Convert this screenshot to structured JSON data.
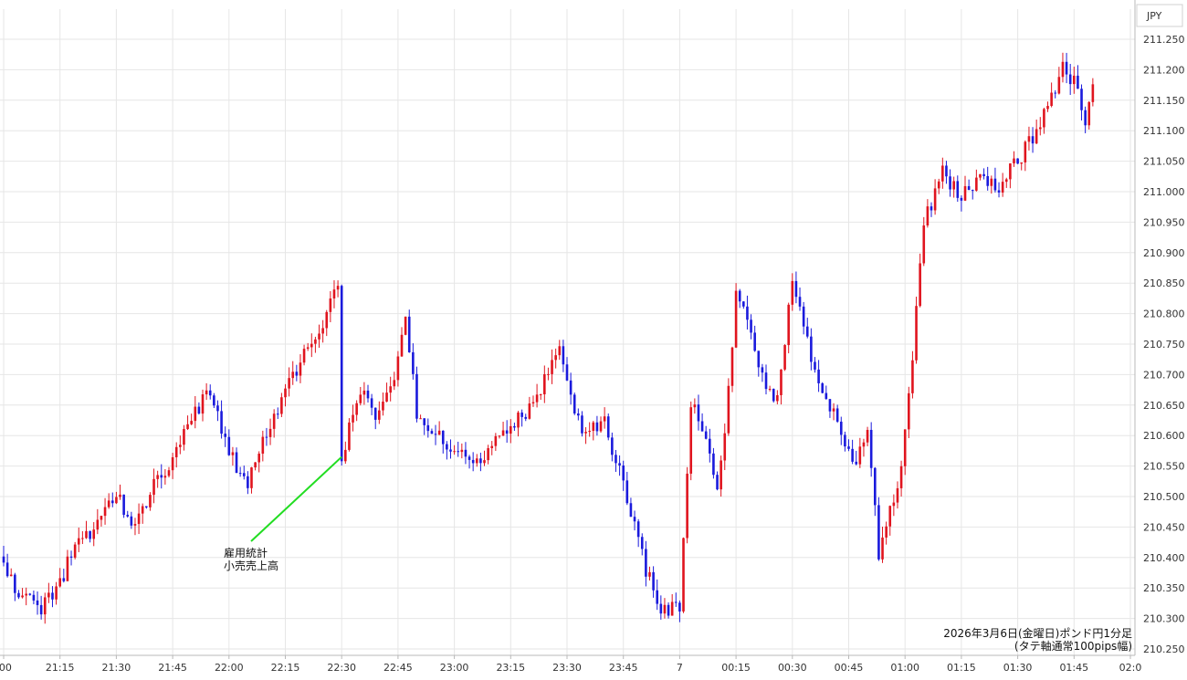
{
  "chart_data": {
    "type": "candlestick",
    "currency_label": "JPY",
    "info_line1": "2026年3月6日(金曜日)ポンド円1分足",
    "info_line2": "(タテ軸通常100pips幅)",
    "annotation": {
      "line1": "雇用統計",
      "line2": "小売売上高"
    },
    "ylim": [
      210.25,
      211.25
    ],
    "yticks": [
      "211.250",
      "211.200",
      "211.150",
      "211.100",
      "211.050",
      "211.000",
      "210.950",
      "210.900",
      "210.850",
      "210.800",
      "210.750",
      "210.700",
      "210.650",
      "210.600",
      "210.550",
      "210.500",
      "210.450",
      "210.400",
      "210.350",
      "210.300",
      "210.250"
    ],
    "xticks": [
      ":00",
      "21:15",
      "21:30",
      "21:45",
      "22:00",
      "22:15",
      "22:30",
      "22:45",
      "23:00",
      "23:15",
      "23:30",
      "23:45",
      "7",
      "00:15",
      "00:30",
      "00:45",
      "01:00",
      "01:15",
      "01:30",
      "01:45",
      "02:0"
    ],
    "grid": true,
    "colors": {
      "up": "#e0141e",
      "down": "#1a1adc",
      "annotation_line": "#22dd22",
      "grid": "#e6e6e6"
    },
    "event_time": "22:30",
    "event_price": 210.565,
    "candles_start": "21:00",
    "candles_interval_min": 1,
    "key_points": [
      [
        "21:00",
        210.39
      ],
      [
        "21:05",
        210.33
      ],
      [
        "21:10",
        210.32
      ],
      [
        "21:15",
        210.36
      ],
      [
        "21:20",
        210.43
      ],
      [
        "21:25",
        210.45
      ],
      [
        "21:30",
        210.5
      ],
      [
        "21:35",
        210.45
      ],
      [
        "21:40",
        210.52
      ],
      [
        "21:45",
        210.56
      ],
      [
        "21:50",
        210.63
      ],
      [
        "21:55",
        210.67
      ],
      [
        "22:00",
        210.57
      ],
      [
        "22:05",
        210.52
      ],
      [
        "22:10",
        210.6
      ],
      [
        "22:15",
        210.68
      ],
      [
        "22:20",
        210.73
      ],
      [
        "22:25",
        210.79
      ],
      [
        "22:28",
        210.84
      ],
      [
        "22:29",
        210.85
      ],
      [
        "22:30",
        210.57
      ],
      [
        "22:35",
        210.67
      ],
      [
        "22:40",
        210.63
      ],
      [
        "22:45",
        210.72
      ],
      [
        "22:47",
        210.79
      ],
      [
        "22:50",
        210.64
      ],
      [
        "22:55",
        210.6
      ],
      [
        "23:00",
        210.57
      ],
      [
        "23:05",
        210.56
      ],
      [
        "23:10",
        210.58
      ],
      [
        "23:15",
        210.62
      ],
      [
        "23:20",
        210.64
      ],
      [
        "23:25",
        210.7
      ],
      [
        "23:28",
        210.76
      ],
      [
        "23:30",
        210.68
      ],
      [
        "23:35",
        210.6
      ],
      [
        "23:40",
        210.62
      ],
      [
        "23:45",
        210.52
      ],
      [
        "23:50",
        210.4
      ],
      [
        "23:55",
        210.31
      ],
      [
        "24:00",
        210.32
      ],
      [
        "24:03",
        210.65
      ],
      [
        "24:07",
        210.6
      ],
      [
        "24:10",
        210.5
      ],
      [
        "24:13",
        210.67
      ],
      [
        "24:15",
        210.84
      ],
      [
        "24:18",
        210.8
      ],
      [
        "24:22",
        210.7
      ],
      [
        "24:26",
        210.66
      ],
      [
        "24:30",
        210.85
      ],
      [
        "24:34",
        210.75
      ],
      [
        "24:38",
        210.68
      ],
      [
        "24:42",
        210.62
      ],
      [
        "24:46",
        210.55
      ],
      [
        "24:50",
        210.6
      ],
      [
        "24:53",
        210.41
      ],
      [
        "24:55",
        210.45
      ],
      [
        "24:58",
        210.52
      ],
      [
        "25:00",
        210.6
      ],
      [
        "25:02",
        210.73
      ],
      [
        "25:05",
        210.95
      ],
      [
        "25:10",
        211.03
      ],
      [
        "25:15",
        210.99
      ],
      [
        "25:20",
        211.02
      ],
      [
        "25:25",
        211.01
      ],
      [
        "25:30",
        211.05
      ],
      [
        "25:35",
        211.1
      ],
      [
        "25:38",
        211.14
      ],
      [
        "25:42",
        211.2
      ],
      [
        "25:45",
        211.18
      ],
      [
        "25:48",
        211.12
      ],
      [
        "25:50",
        211.19
      ]
    ]
  }
}
